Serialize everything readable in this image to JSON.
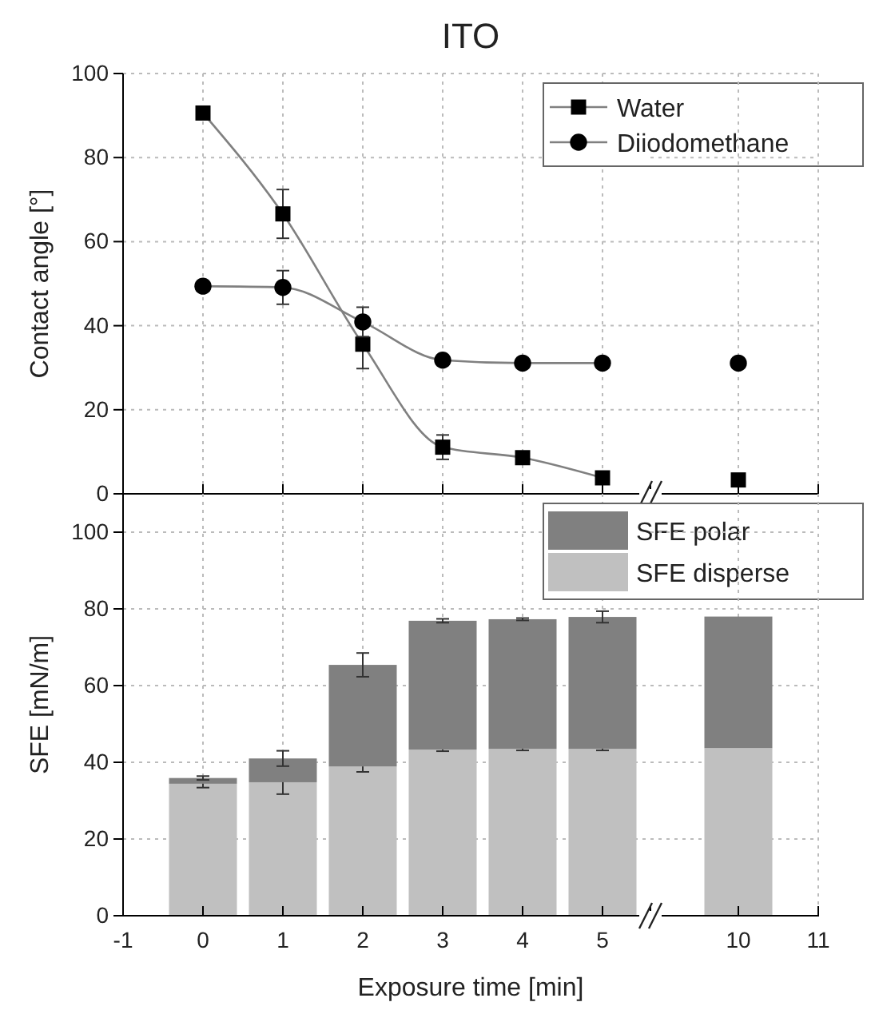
{
  "chart_data": [
    {
      "type": "line",
      "title": "ITO",
      "ylabel": "Contact angle [°]",
      "x": [
        0,
        1,
        2,
        3,
        4,
        5
      ],
      "xlim": [
        -1,
        5.6
      ],
      "xticks": [
        -1,
        0,
        1,
        2,
        3,
        4,
        5
      ],
      "ylim": [
        0,
        100
      ],
      "yticks": [
        0,
        20,
        40,
        60,
        80,
        100
      ],
      "grid": true,
      "legend": "top right",
      "tick_labels": "y",
      "line_style": "solid",
      "series": [
        {
          "name": "Water",
          "color": "#000000",
          "marker": "square",
          "values": [
            90.6,
            66.6,
            35.6,
            11.1,
            8.6,
            3.8
          ],
          "errors": [
            null,
            5.8,
            5.8,
            2.9,
            null,
            null
          ]
        },
        {
          "name": "Diiodomethane",
          "color": "#000000",
          "marker": "circle",
          "values": [
            49.4,
            49.1,
            40.9,
            31.8,
            31.1,
            31.1
          ],
          "errors": [
            null,
            4,
            3.5,
            null,
            null,
            null
          ]
        }
      ]
    },
    {
      "type": "line",
      "x": [
        10
      ],
      "xlim": [
        8.9,
        11
      ],
      "xticks": [
        10,
        11
      ],
      "ylim": [
        0,
        100
      ],
      "yticks": [
        0,
        20,
        40,
        60,
        80,
        100
      ],
      "grid": true,
      "tick_labels": false,
      "series": [
        {
          "color": "#000000",
          "marker": "square",
          "values": [
            3.3
          ]
        },
        {
          "color": "#000000",
          "marker": "circle",
          "values": [
            31.1
          ]
        }
      ]
    },
    {
      "type": "bar",
      "stacked": true,
      "xlabel": "Exposure time [min]",
      "ylabel": "SFE [mN/m]",
      "x": [
        0,
        1,
        2,
        3,
        4,
        5
      ],
      "xlim": [
        -1,
        5.6
      ],
      "xticks": [
        -1,
        0,
        1,
        2,
        3,
        4,
        5
      ],
      "ylim": [
        0,
        110
      ],
      "yticks": [
        0,
        20,
        40,
        60,
        80,
        100
      ],
      "grid": true,
      "legend": "top right",
      "series": [
        {
          "name": "SFE disperse",
          "color": "#c0c0c0",
          "values": [
            34.4,
            34.8,
            38.9,
            43.3,
            43.5,
            43.5
          ],
          "errors": [
            1,
            3.1,
            1.4,
            0.4,
            0.4,
            0.4
          ]
        },
        {
          "name": "SFE polar",
          "color": "#808080",
          "values": [
            1.5,
            6.2,
            26.5,
            33.6,
            33.8,
            34.4
          ],
          "errors": [
            0.5,
            2,
            3.1,
            0.5,
            0.3,
            1.5
          ]
        }
      ]
    },
    {
      "type": "bar",
      "stacked": true,
      "x": [
        10
      ],
      "xlim": [
        8.9,
        11
      ],
      "xticks": [
        10,
        11
      ],
      "ylim": [
        0,
        110
      ],
      "yticks": [
        0,
        20,
        40,
        60,
        80,
        100
      ],
      "grid": true,
      "tick_labels": "x",
      "series": [
        {
          "color": "#c0c0c0",
          "values": [
            43.7
          ]
        },
        {
          "color": "#808080",
          "values": [
            34.3
          ]
        }
      ]
    }
  ]
}
